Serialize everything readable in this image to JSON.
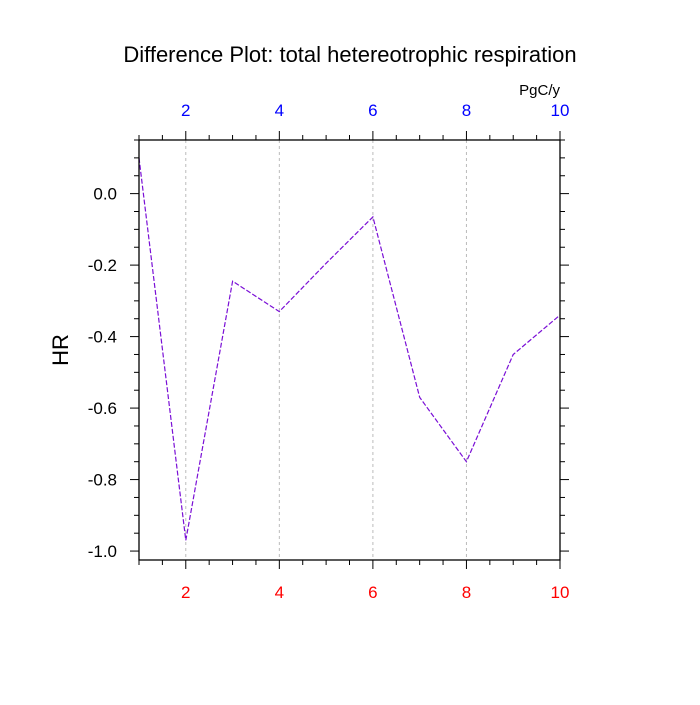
{
  "chart_data": {
    "type": "line",
    "title": "Difference Plot: total hetereotrophic respiration",
    "ylabel": "HR",
    "units_label": "PgC/y",
    "x": [
      1,
      2,
      3,
      4,
      5,
      6,
      7,
      8,
      9,
      10
    ],
    "series": [
      {
        "values": [
          0.1,
          -0.97,
          -0.245,
          -0.33,
          -0.195,
          -0.065,
          -0.57,
          -0.75,
          -0.45,
          -0.34
        ]
      }
    ],
    "xlim": [
      1,
      10
    ],
    "ylim": [
      -1.025,
      0.15
    ],
    "x_ticks": [
      2,
      4,
      6,
      8,
      10
    ],
    "x_tick_labels": [
      "2",
      "4",
      "6",
      "8",
      "10"
    ],
    "x_top_tick_labels": [
      "2",
      "4",
      "6",
      "8",
      "10"
    ],
    "y_ticks": [
      0.0,
      -0.2,
      -0.4,
      -0.6,
      -0.8,
      -1.0
    ],
    "y_tick_labels": [
      "0.0",
      "-0.2",
      "-0.4",
      "-0.6",
      "-0.8",
      "-1.0"
    ],
    "grid": "vertical dotted at major x ticks",
    "colors": {
      "line": "#7a0fd6",
      "bottom_ticks": "#ff0000",
      "top_ticks": "#0000ff",
      "grid": "#bbbbbb"
    }
  }
}
